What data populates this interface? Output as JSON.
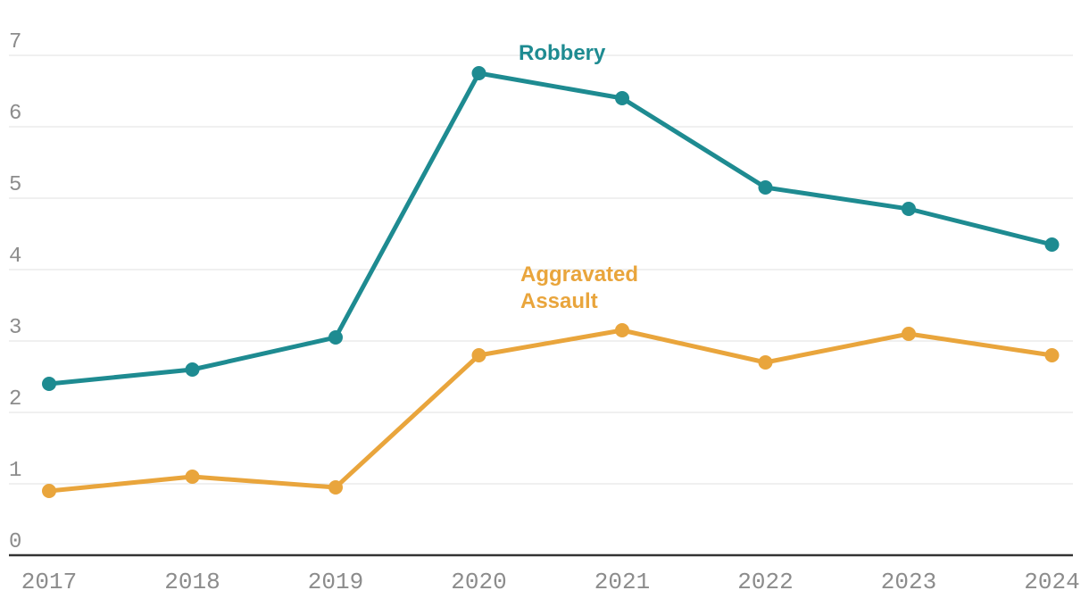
{
  "chart_data": {
    "type": "line",
    "title": "",
    "xlabel": "",
    "ylabel": "",
    "x": [
      "2017",
      "2018",
      "2019",
      "2020",
      "2021",
      "2022",
      "2023",
      "2024"
    ],
    "series": [
      {
        "name": "Robbery",
        "color": "#1E8B91",
        "values": [
          2.4,
          2.6,
          3.05,
          6.75,
          6.4,
          5.15,
          4.85,
          4.35
        ]
      },
      {
        "name": "Aggravated Assault",
        "color": "#E9A53C",
        "values": [
          0.9,
          1.1,
          0.95,
          2.8,
          3.15,
          2.7,
          3.1,
          2.8
        ]
      }
    ],
    "ylim": [
      0,
      7
    ],
    "y_ticks": [
      0,
      1,
      2,
      3,
      4,
      5,
      6,
      7
    ],
    "grid": true,
    "legend_position": "inline-labels-near-lines",
    "point_markers": true
  },
  "colors": {
    "grid": "#E2E2E2",
    "axis": "#333333",
    "tick_text": "#8C8C8C",
    "background": "#FFFFFF"
  }
}
